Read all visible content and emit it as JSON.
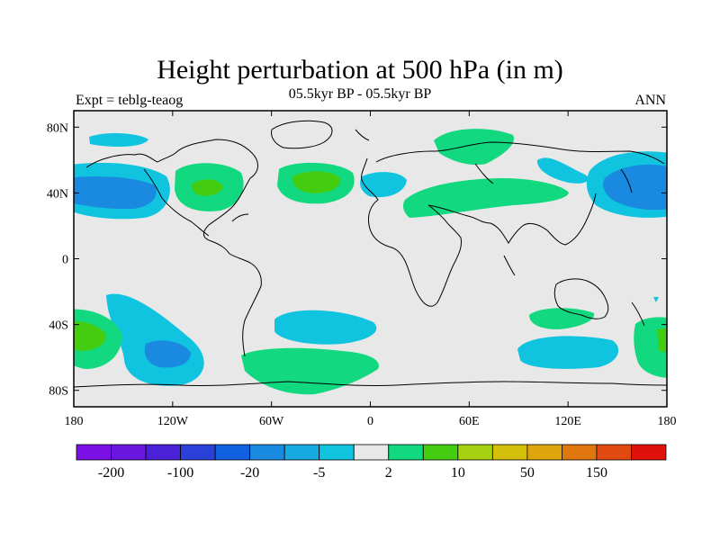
{
  "header": {
    "title": "Height perturbation at 500 hPa (in m)",
    "subtitle": "05.5kyr BP - 05.5kyr BP",
    "left_label": "Expt = teblg-teaog",
    "right_label": "ANN"
  },
  "map": {
    "lon_ticks": [
      {
        "value": -180,
        "label": "180"
      },
      {
        "value": -120,
        "label": "120W"
      },
      {
        "value": -60,
        "label": "60W"
      },
      {
        "value": 0,
        "label": "0"
      },
      {
        "value": 60,
        "label": "60E"
      },
      {
        "value": 120,
        "label": "120E"
      },
      {
        "value": 180,
        "label": "180"
      }
    ],
    "lat_ticks": [
      {
        "value": 80,
        "label": "80N"
      },
      {
        "value": 40,
        "label": "40N"
      },
      {
        "value": 0,
        "label": "0"
      },
      {
        "value": -40,
        "label": "40S"
      },
      {
        "value": -80,
        "label": "80S"
      }
    ],
    "lon_range": [
      -180,
      180
    ],
    "lat_range": [
      -90,
      90
    ],
    "background_color": "#e8e8e8"
  },
  "colorbar": {
    "labels": [
      "-200",
      "-100",
      "-20",
      "-5",
      "2",
      "10",
      "50",
      "150"
    ],
    "colors": [
      "#7a10e6",
      "#6a16e0",
      "#4a20d8",
      "#2a40d8",
      "#1060e0",
      "#1a8ae0",
      "#16aae0",
      "#10c4e0",
      "#e8e8e8",
      "#12d880",
      "#44cc10",
      "#a6d010",
      "#d4c00a",
      "#e0a40c",
      "#e0760e",
      "#e04a10",
      "#e0100a"
    ]
  }
}
